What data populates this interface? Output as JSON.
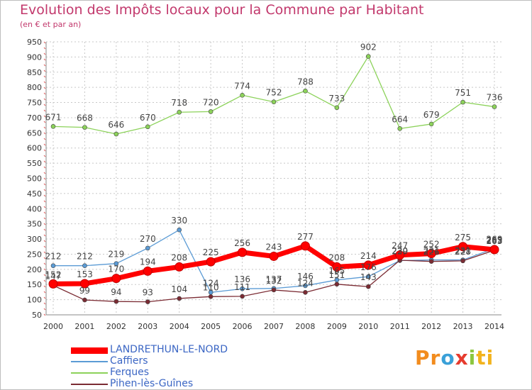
{
  "title": "Evolution des Impôts locaux pour la Commune par Habitant",
  "subtitle": "(en € et par an)",
  "logo": {
    "parts": [
      {
        "text": "Pr",
        "color": "#f28c1e"
      },
      {
        "text": "o",
        "color": "#3aa0d8"
      },
      {
        "text": "x",
        "color": "#e63b2e"
      },
      {
        "text": "i",
        "color": "#8cc63f"
      },
      {
        "text": "ti",
        "color": "#f2b31e"
      }
    ]
  },
  "chart_data": {
    "type": "line",
    "x": [
      "2000",
      "2001",
      "2002",
      "2003",
      "2004",
      "2005",
      "2006",
      "2007",
      "2008",
      "2009",
      "2010",
      "2011",
      "2012",
      "2013",
      "2014"
    ],
    "ylim": [
      50,
      950
    ],
    "yticks": [
      50,
      100,
      150,
      200,
      250,
      300,
      350,
      400,
      450,
      500,
      550,
      600,
      650,
      700,
      750,
      800,
      850,
      900,
      950
    ],
    "grid": true,
    "series": [
      {
        "name": "LANDRETHUN-LE-NORD",
        "color": "#ff0000",
        "values": [
          152,
          153,
          170,
          194,
          208,
          225,
          256,
          243,
          277,
          208,
          214,
          247,
          252,
          275,
          265
        ],
        "labels": [
          "152",
          "153",
          "170",
          "194",
          "208",
          "225",
          "256",
          "243",
          "277",
          "208",
          "214",
          "247",
          "252",
          "275",
          "265"
        ]
      },
      {
        "name": "Caffiers",
        "color": "#5b9bd5",
        "values": [
          212,
          212,
          219,
          270,
          330,
          124,
          136,
          137,
          146,
          165,
          176,
          229,
          231,
          231,
          269
        ],
        "labels": [
          "212",
          "212",
          "219",
          "270",
          "330",
          "124",
          "136",
          "137",
          "146",
          "165",
          "176",
          "229",
          "231",
          "231",
          "269"
        ]
      },
      {
        "name": "Ferques",
        "color": "#8cd25a",
        "values": [
          671,
          668,
          646,
          670,
          718,
          720,
          774,
          752,
          788,
          733,
          902,
          664,
          679,
          751,
          736
        ],
        "labels": [
          "671",
          "668",
          "646",
          "670",
          "718",
          "720",
          "774",
          "752",
          "788",
          "733",
          "902",
          "664",
          "679",
          "751",
          "736"
        ]
      },
      {
        "name": "Pihen-lès-Guînes",
        "color": "#7b2b33",
        "values": [
          147,
          99,
          94,
          93,
          104,
          110,
          111,
          132,
          124,
          151,
          143,
          230,
          226,
          228,
          263
        ],
        "labels": [
          "147",
          "99",
          "94",
          "93",
          "104",
          "110",
          "111",
          "132",
          "124",
          "151",
          "143",
          "230",
          "226",
          "228",
          "263"
        ]
      }
    ]
  }
}
